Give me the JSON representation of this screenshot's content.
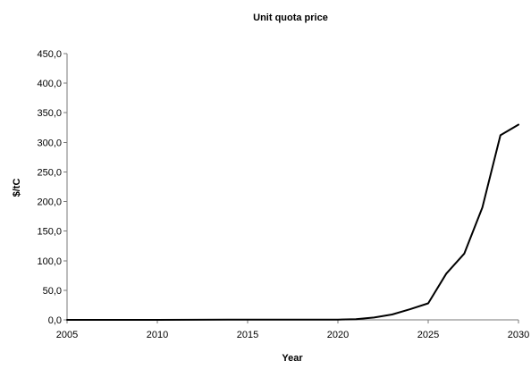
{
  "chart_data": {
    "type": "line",
    "title": "Unit quota price",
    "xlabel": "Year",
    "ylabel": "$/tC",
    "xlim": [
      2005,
      2030
    ],
    "ylim": [
      0,
      450
    ],
    "x_ticks": [
      "2005",
      "2010",
      "2015",
      "2020",
      "2025",
      "2030"
    ],
    "y_ticks": [
      "0,0",
      "50,0",
      "100,0",
      "150,0",
      "200,0",
      "250,0",
      "300,0",
      "350,0",
      "400,0",
      "450,0"
    ],
    "grid": false,
    "legend": "none",
    "colors": {
      "line": "#000000",
      "axis": "#7a7a7a"
    },
    "series": [
      {
        "x": [
          2005,
          2010,
          2015,
          2020,
          2021,
          2022,
          2023,
          2024,
          2025,
          2026,
          2027,
          2028,
          2029,
          2030
        ],
        "y": [
          0,
          0,
          0.5,
          0.5,
          1,
          4,
          9,
          18,
          28,
          78,
          112,
          190,
          312,
          330
        ]
      }
    ]
  }
}
